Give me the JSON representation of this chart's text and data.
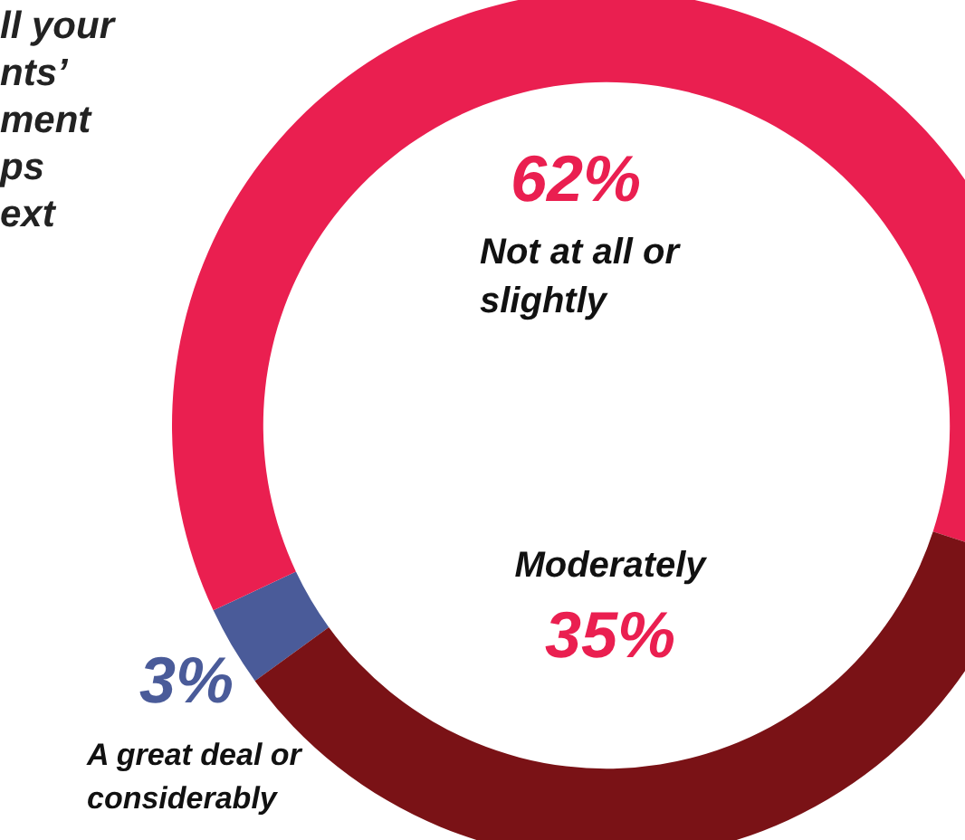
{
  "chart_data": {
    "type": "donut",
    "title": "ll your\nnts’\nment\nps\next",
    "categories": [
      "A great deal or considerably",
      "Not at all or slightly",
      "Moderately"
    ],
    "values": [
      3,
      62,
      35
    ],
    "colors": [
      "#4a5b99",
      "#ea1f50",
      "#7a1216"
    ],
    "value_labels": [
      "3%",
      "62%",
      "35%"
    ],
    "legend": false
  }
}
